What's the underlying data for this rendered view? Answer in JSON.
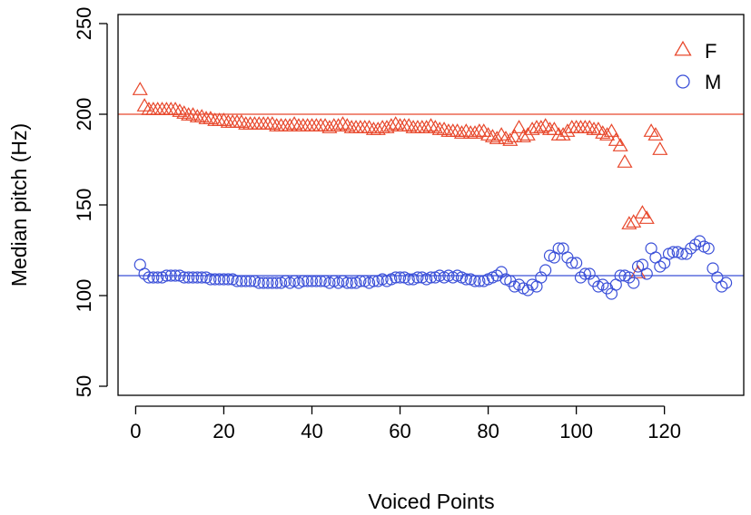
{
  "chart_data": {
    "type": "scatter",
    "xlabel": "Voiced Points",
    "ylabel": "Median pitch (Hz)",
    "xlim": [
      -4,
      138
    ],
    "ylim": [
      45,
      255
    ],
    "x_ticks": [
      0,
      20,
      40,
      60,
      80,
      100,
      120
    ],
    "y_ticks": [
      50,
      100,
      150,
      200,
      250
    ],
    "legend": {
      "position": "top-right"
    },
    "reference_lines": [
      {
        "series": "F",
        "y": 200,
        "color": "#e8482c"
      },
      {
        "series": "M",
        "y": 111,
        "color": "#3a4fd8"
      }
    ],
    "series": [
      {
        "name": "F",
        "marker": "triangle",
        "color": "#e8482c",
        "x": [
          1,
          2,
          3,
          4,
          5,
          6,
          7,
          8,
          9,
          10,
          11,
          12,
          13,
          14,
          15,
          16,
          17,
          18,
          19,
          20,
          21,
          22,
          23,
          24,
          25,
          26,
          27,
          28,
          29,
          30,
          31,
          32,
          33,
          34,
          35,
          36,
          37,
          38,
          39,
          40,
          41,
          42,
          43,
          44,
          45,
          46,
          47,
          48,
          49,
          50,
          51,
          52,
          53,
          54,
          55,
          56,
          57,
          58,
          59,
          60,
          61,
          62,
          63,
          64,
          65,
          66,
          67,
          68,
          69,
          70,
          71,
          72,
          73,
          74,
          75,
          76,
          77,
          78,
          79,
          80,
          81,
          82,
          83,
          84,
          85,
          86,
          87,
          88,
          89,
          90,
          91,
          92,
          93,
          94,
          95,
          96,
          97,
          98,
          99,
          100,
          101,
          102,
          103,
          104,
          105,
          106,
          107,
          108,
          109,
          110,
          111,
          112,
          113,
          114,
          115,
          116,
          117,
          118,
          119
        ],
        "y": [
          213,
          204,
          202,
          202,
          202,
          202,
          202,
          202,
          202,
          201,
          200,
          199,
          199,
          198,
          198,
          197,
          197,
          196,
          196,
          196,
          195,
          195,
          195,
          195,
          194,
          194,
          194,
          194,
          194,
          194,
          194,
          193,
          193,
          193,
          193,
          194,
          193,
          193,
          193,
          193,
          193,
          193,
          193,
          192,
          193,
          193,
          194,
          193,
          192,
          192,
          192,
          192,
          192,
          191,
          191,
          192,
          192,
          193,
          194,
          193,
          193,
          193,
          192,
          192,
          192,
          192,
          193,
          192,
          191,
          191,
          190,
          190,
          190,
          189,
          190,
          189,
          189,
          190,
          190,
          188,
          187,
          186,
          188,
          186,
          185,
          187,
          192,
          187,
          188,
          191,
          192,
          192,
          193,
          191,
          191,
          188,
          188,
          190,
          192,
          192,
          192,
          192,
          192,
          191,
          191,
          189,
          188,
          190,
          185,
          182,
          173,
          139,
          140,
          112,
          145,
          142,
          190,
          188,
          180
        ]
      },
      {
        "name": "M",
        "marker": "circle",
        "color": "#3a4fd8",
        "x": [
          1,
          2,
          3,
          4,
          5,
          6,
          7,
          8,
          9,
          10,
          11,
          12,
          13,
          14,
          15,
          16,
          17,
          18,
          19,
          20,
          21,
          22,
          23,
          24,
          25,
          26,
          27,
          28,
          29,
          30,
          31,
          32,
          33,
          34,
          35,
          36,
          37,
          38,
          39,
          40,
          41,
          42,
          43,
          44,
          45,
          46,
          47,
          48,
          49,
          50,
          51,
          52,
          53,
          54,
          55,
          56,
          57,
          58,
          59,
          60,
          61,
          62,
          63,
          64,
          65,
          66,
          67,
          68,
          69,
          70,
          71,
          72,
          73,
          74,
          75,
          76,
          77,
          78,
          79,
          80,
          81,
          82,
          83,
          84,
          85,
          86,
          87,
          88,
          89,
          90,
          91,
          92,
          93,
          94,
          95,
          96,
          97,
          98,
          99,
          100,
          101,
          102,
          103,
          104,
          105,
          106,
          107,
          108,
          109,
          110,
          111,
          112,
          113,
          114,
          115,
          116,
          117,
          118,
          119,
          120,
          121,
          122,
          123,
          124,
          125,
          126,
          127,
          128,
          129,
          130,
          131,
          132,
          133,
          134
        ],
        "y": [
          117,
          112,
          110,
          110,
          110,
          110,
          111,
          111,
          111,
          111,
          110,
          110,
          110,
          110,
          110,
          110,
          109,
          109,
          109,
          109,
          109,
          109,
          108,
          108,
          108,
          108,
          108,
          107,
          107,
          107,
          107,
          107,
          107,
          108,
          107,
          108,
          107,
          108,
          108,
          108,
          108,
          108,
          108,
          107,
          108,
          107,
          108,
          107,
          107,
          107,
          108,
          108,
          107,
          108,
          108,
          109,
          108,
          109,
          110,
          110,
          110,
          109,
          109,
          110,
          110,
          109,
          110,
          110,
          111,
          110,
          111,
          110,
          111,
          110,
          109,
          109,
          108,
          108,
          108,
          109,
          110,
          111,
          113,
          109,
          108,
          105,
          106,
          104,
          103,
          106,
          105,
          110,
          114,
          122,
          121,
          126,
          126,
          121,
          118,
          118,
          110,
          112,
          112,
          108,
          105,
          106,
          104,
          101,
          106,
          111,
          111,
          110,
          107,
          116,
          117,
          112,
          126,
          121,
          116,
          118,
          123,
          124,
          124,
          123,
          123,
          126,
          128,
          130,
          127,
          126,
          115,
          110,
          105,
          107
        ]
      }
    ]
  }
}
